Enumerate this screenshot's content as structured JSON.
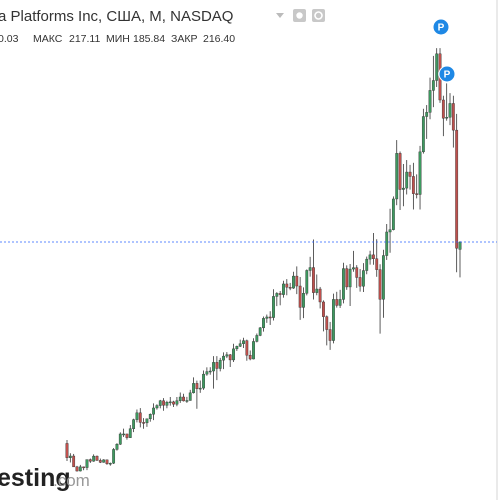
{
  "chart_data": {
    "type": "candlestick",
    "title": "a Platforms Inc, США, M, NASDAQ",
    "stats": [
      {
        "value": "0.03"
      },
      {
        "label": "МАКС",
        "value": "217.11"
      },
      {
        "label": "МИН",
        "value": "185.84"
      },
      {
        "label": "ЗАКР",
        "value": "216.40"
      }
    ],
    "markers": [
      "P",
      "P"
    ],
    "watermark": {
      "brand": "esting",
      "domain": ".com"
    },
    "up_color": "#3d9a5f",
    "down_color": "#c0504d",
    "price_line_color": "#2962ff",
    "ylim": [
      -7,
      426
    ],
    "candles": [
      [
        42.0,
        45.0,
        26.8,
        29.6
      ],
      [
        29.6,
        33.5,
        25.5,
        31.1
      ],
      [
        31.1,
        32.9,
        21.6,
        21.7
      ],
      [
        21.7,
        22.5,
        17.6,
        18.1
      ],
      [
        18.1,
        23.4,
        17.7,
        21.7
      ],
      [
        21.7,
        22.0,
        18.8,
        21.1
      ],
      [
        21.1,
        28.0,
        18.9,
        28.0
      ],
      [
        28.0,
        28.9,
        25.1,
        26.6
      ],
      [
        26.6,
        32.5,
        26.1,
        31.0
      ],
      [
        31.0,
        31.5,
        26.9,
        27.3
      ],
      [
        27.3,
        28.9,
        25.0,
        25.6
      ],
      [
        25.6,
        28.3,
        25.3,
        27.8
      ],
      [
        27.8,
        28.0,
        23.4,
        24.4
      ],
      [
        24.4,
        25.4,
        22.7,
        24.9
      ],
      [
        24.9,
        38.0,
        24.2,
        36.8
      ],
      [
        36.8,
        42.3,
        35.8,
        41.3
      ],
      [
        41.3,
        51.6,
        40.7,
        50.2
      ],
      [
        50.2,
        54.8,
        47.6,
        50.2
      ],
      [
        50.2,
        50.3,
        45.3,
        47.0
      ],
      [
        47.0,
        57.9,
        46.7,
        54.7
      ],
      [
        54.7,
        63.4,
        51.8,
        62.6
      ],
      [
        62.6,
        71.4,
        60.2,
        68.5
      ],
      [
        68.5,
        72.6,
        55.9,
        60.2
      ],
      [
        60.2,
        63.9,
        54.7,
        59.8
      ],
      [
        59.8,
        63.6,
        56.3,
        63.3
      ],
      [
        63.3,
        68.0,
        60.8,
        67.3
      ],
      [
        67.3,
        76.7,
        62.2,
        72.7
      ],
      [
        72.7,
        75.9,
        71.3,
        74.8
      ],
      [
        74.8,
        79.7,
        72.4,
        79.0
      ],
      [
        79.0,
        81.2,
        70.3,
        75.0
      ],
      [
        75.0,
        78.9,
        72.5,
        77.7
      ],
      [
        77.7,
        82.2,
        74.7,
        78.0
      ],
      [
        78.0,
        79.0,
        73.5,
        75.9
      ],
      [
        75.9,
        82.2,
        74.2,
        79.0
      ],
      [
        79.0,
        86.1,
        77.1,
        82.2
      ],
      [
        82.2,
        85.0,
        78.3,
        78.8
      ],
      [
        78.8,
        82.3,
        77.1,
        79.2
      ],
      [
        79.2,
        88.4,
        79.0,
        85.8
      ],
      [
        85.8,
        99.2,
        85.2,
        94.0
      ],
      [
        94.0,
        96.4,
        72.0,
        89.4
      ],
      [
        89.4,
        96.5,
        85.8,
        89.9
      ],
      [
        89.9,
        105.1,
        88.4,
        102.0
      ],
      [
        102.0,
        107.9,
        100.6,
        104.2
      ],
      [
        104.2,
        108.0,
        101.5,
        104.7
      ],
      [
        104.7,
        117.6,
        89.4,
        112.2
      ],
      [
        112.2,
        117.6,
        96.8,
        106.9
      ],
      [
        106.9,
        116.1,
        104.4,
        114.1
      ],
      [
        114.1,
        120.8,
        106.3,
        117.6
      ],
      [
        117.6,
        121.1,
        115.9,
        118.8
      ],
      [
        118.8,
        119.4,
        108.2,
        114.3
      ],
      [
        114.3,
        128.3,
        112.5,
        123.9
      ],
      [
        123.9,
        126.7,
        122.1,
        126.1
      ],
      [
        126.1,
        131.9,
        125.5,
        128.3
      ],
      [
        128.3,
        133.5,
        124.6,
        131.0
      ],
      [
        131.0,
        131.9,
        113.6,
        118.4
      ],
      [
        118.4,
        122.5,
        114.0,
        115.1
      ],
      [
        115.1,
        133.1,
        114.8,
        130.3
      ],
      [
        130.3,
        137.2,
        129.5,
        135.5
      ],
      [
        135.5,
        142.8,
        134.9,
        142.1
      ],
      [
        142.1,
        151.9,
        138.8,
        150.3
      ],
      [
        150.3,
        153.6,
        146.4,
        151.5
      ],
      [
        151.5,
        156.5,
        144.6,
        151.0
      ],
      [
        151.0,
        175.5,
        148.4,
        169.3
      ],
      [
        169.3,
        173.0,
        160.9,
        171.9
      ],
      [
        171.9,
        174.0,
        161.6,
        170.9
      ],
      [
        170.9,
        182.9,
        168.3,
        180.1
      ],
      [
        180.1,
        184.3,
        170.3,
        177.2
      ],
      [
        177.2,
        181.0,
        174.7,
        176.5
      ],
      [
        176.5,
        190.7,
        175.8,
        186.9
      ],
      [
        186.9,
        195.3,
        171.3,
        178.3
      ],
      [
        178.3,
        186.1,
        149.0,
        159.8
      ],
      [
        159.8,
        177.1,
        150.5,
        172.0
      ],
      [
        172.0,
        192.7,
        170.2,
        191.8
      ],
      [
        191.8,
        203.6,
        186.4,
        194.3
      ],
      [
        194.3,
        218.6,
        166.6,
        172.6
      ],
      [
        172.6,
        188.3,
        170.3,
        175.7
      ],
      [
        175.7,
        177.5,
        158.9,
        164.5
      ],
      [
        164.5,
        165.9,
        139.0,
        151.8
      ],
      [
        151.8,
        152.8,
        126.9,
        140.6
      ],
      [
        140.6,
        147.2,
        123.0,
        131.1
      ],
      [
        131.1,
        171.7,
        128.6,
        166.7
      ],
      [
        166.7,
        173.3,
        159.6,
        161.5
      ],
      [
        161.5,
        175.0,
        159.3,
        166.7
      ],
      [
        166.7,
        198.5,
        163.3,
        193.4
      ],
      [
        193.4,
        196.2,
        175.0,
        177.5
      ],
      [
        177.5,
        197.4,
        161.0,
        193.0
      ],
      [
        193.0,
        208.7,
        190.7,
        194.2
      ],
      [
        194.2,
        196.4,
        176.7,
        185.7
      ],
      [
        185.7,
        193.1,
        173.5,
        178.1
      ],
      [
        178.1,
        198.1,
        173.1,
        191.7
      ],
      [
        191.7,
        203.8,
        188.5,
        201.6
      ],
      [
        201.6,
        208.9,
        196.8,
        205.3
      ],
      [
        205.3,
        224.2,
        196.7,
        201.9
      ],
      [
        201.9,
        218.8,
        186.3,
        192.5
      ],
      [
        192.5,
        197.2,
        137.1,
        166.8
      ],
      [
        166.8,
        209.7,
        150.8,
        204.7
      ],
      [
        204.7,
        232.0,
        200.9,
        225.1
      ],
      [
        225.1,
        245.2,
        207.1,
        227.1
      ],
      [
        227.1,
        255.9,
        226.5,
        253.7
      ],
      [
        253.7,
        304.7,
        248.3,
        293.2
      ],
      [
        293.2,
        294.8,
        244.1,
        261.9
      ],
      [
        261.9,
        284.0,
        247.4,
        263.1
      ],
      [
        263.1,
        287.4,
        257.6,
        277.0
      ],
      [
        277.0,
        283.2,
        261.8,
        273.2
      ],
      [
        273.2,
        285.0,
        244.6,
        258.3
      ],
      [
        258.3,
        275.0,
        254.2,
        257.6
      ],
      [
        257.6,
        299.7,
        244.6,
        294.5
      ],
      [
        294.5,
        331.8,
        293.0,
        325.1
      ],
      [
        325.1,
        335.0,
        305.7,
        328.7
      ],
      [
        328.7,
        358.8,
        322.7,
        347.7
      ],
      [
        347.7,
        377.6,
        333.2,
        356.3
      ],
      [
        356.3,
        384.3,
        350.7,
        379.4
      ],
      [
        379.4,
        384.3,
        336.9,
        339.4
      ],
      [
        339.4,
        343.1,
        308.1,
        323.6
      ],
      [
        323.6,
        353.8,
        321.5,
        324.5
      ],
      [
        324.5,
        345.3,
        317.6,
        336.4
      ],
      [
        336.4,
        343.1,
        298.2,
        313.3
      ],
      [
        313.3,
        327.4,
        190.2,
        211.0
      ],
      [
        210.03,
        217.11,
        185.84,
        216.4
      ]
    ]
  }
}
